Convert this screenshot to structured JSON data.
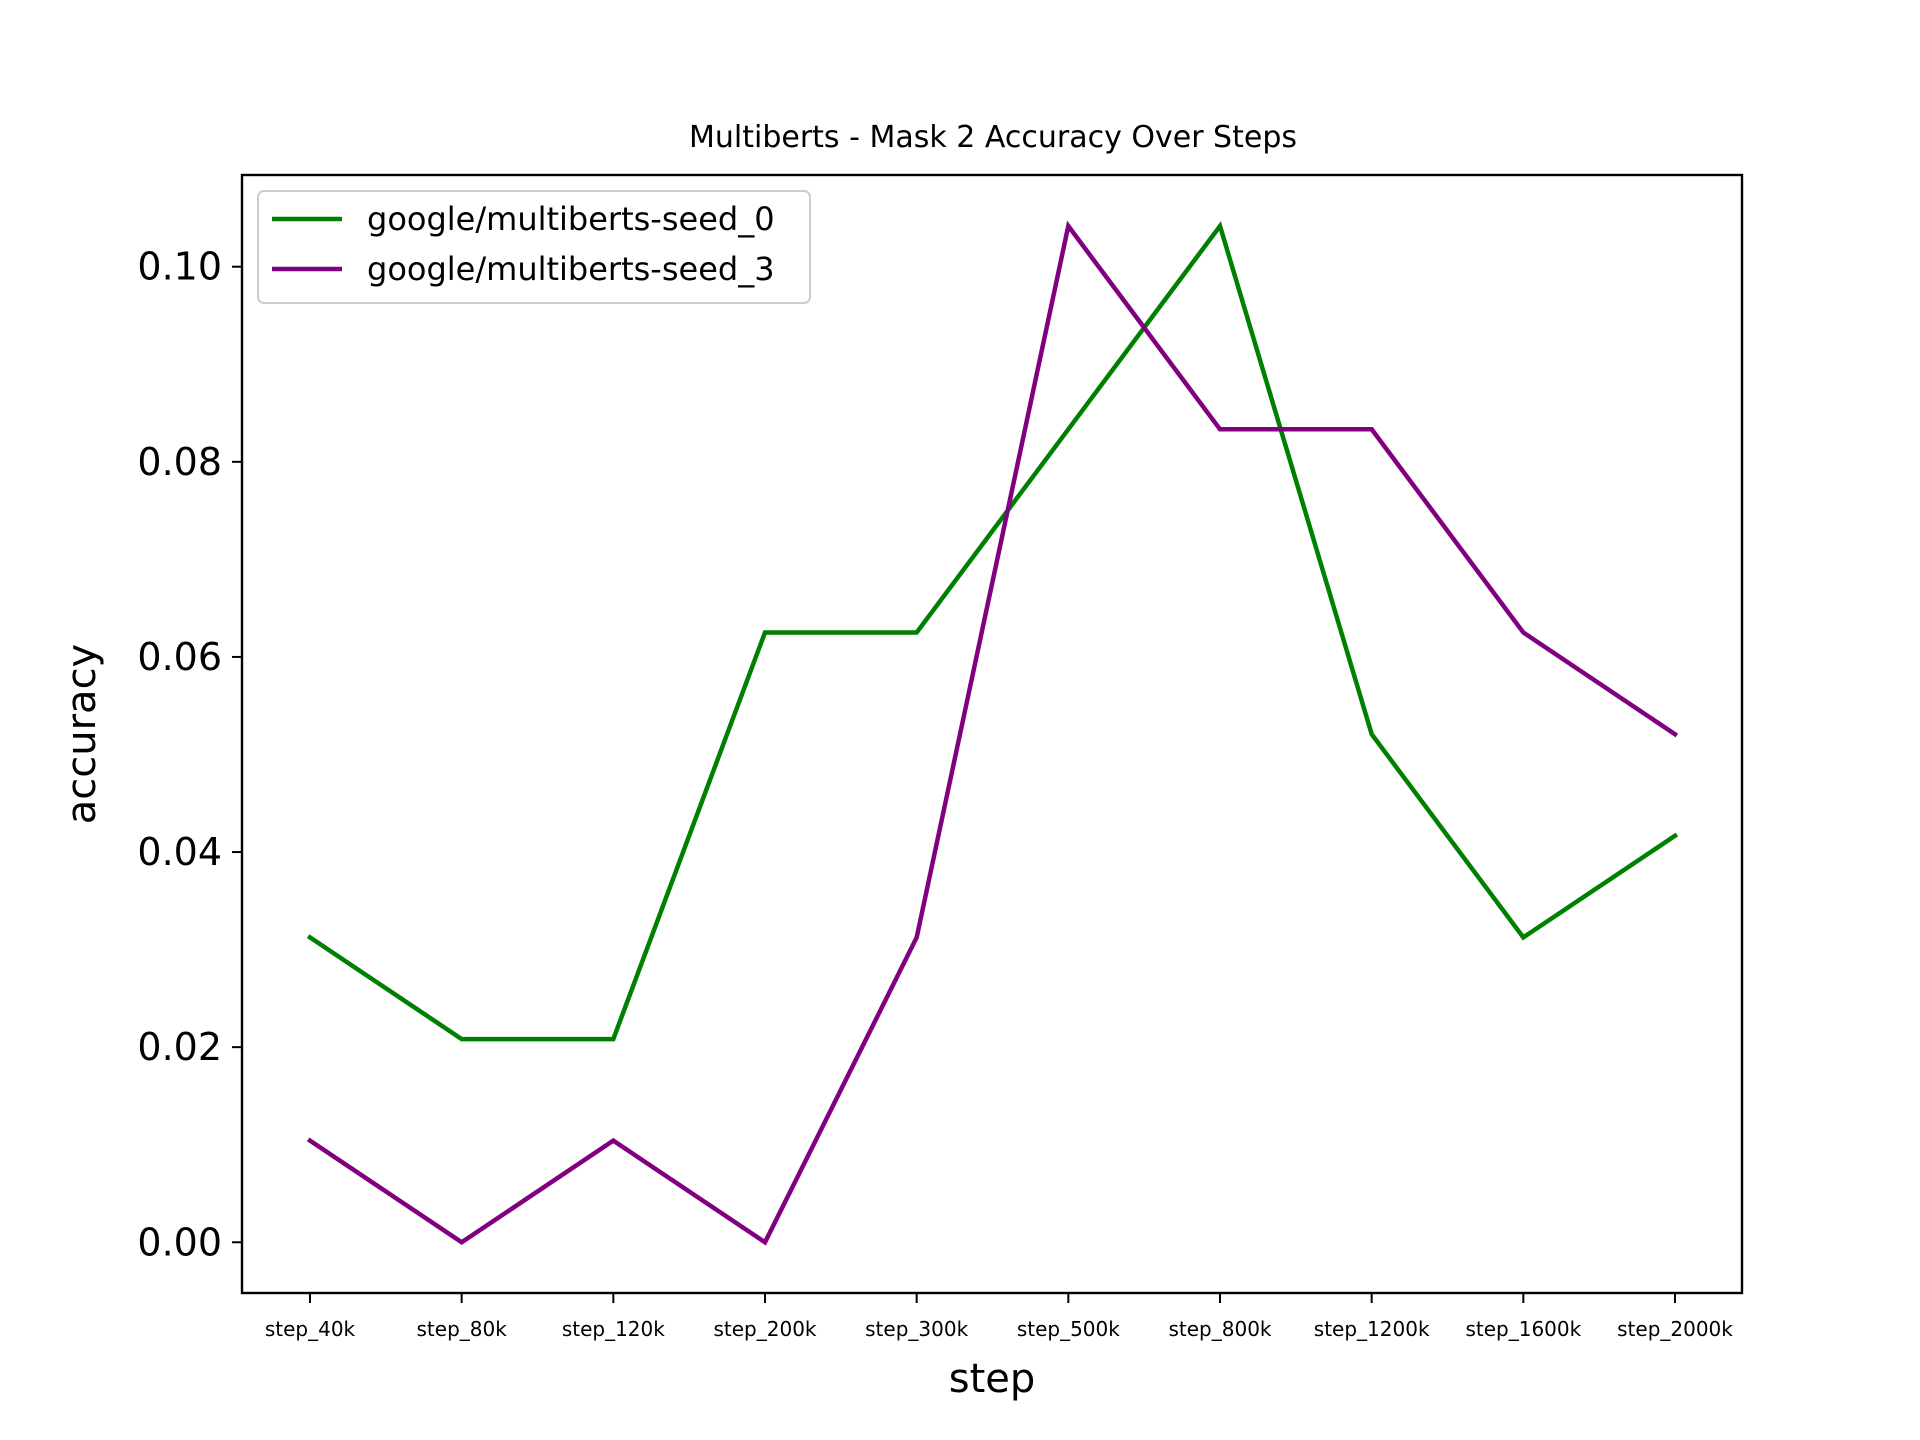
{
  "chart_data": {
    "type": "line",
    "title": "Multiberts - Mask 2 Accuracy Over Steps",
    "xlabel": "step",
    "ylabel": "accuracy",
    "categories": [
      "step_40k",
      "step_80k",
      "step_120k",
      "step_200k",
      "step_300k",
      "step_500k",
      "step_800k",
      "step_1200k",
      "step_1600k",
      "step_2000k"
    ],
    "ylim": [
      -0.0052,
      0.1094
    ],
    "yticks": [
      "0.00",
      "0.02",
      "0.04",
      "0.06",
      "0.08",
      "0.10"
    ],
    "ytick_values": [
      0.0,
      0.02,
      0.04,
      0.06,
      0.08,
      0.1
    ],
    "grid": false,
    "legend_position": "top-left",
    "series": [
      {
        "name": "google/multiberts-seed_0",
        "color": "#008000",
        "values": [
          0.03125,
          0.02083,
          0.02083,
          0.0625,
          0.0625,
          0.08333,
          0.10417,
          0.05208,
          0.03125,
          0.04167
        ]
      },
      {
        "name": "google/multiberts-seed_3",
        "color": "#800080",
        "values": [
          0.01042,
          0.0,
          0.01042,
          0.0,
          0.03125,
          0.10417,
          0.08333,
          0.08333,
          0.0625,
          0.05208
        ]
      }
    ]
  }
}
